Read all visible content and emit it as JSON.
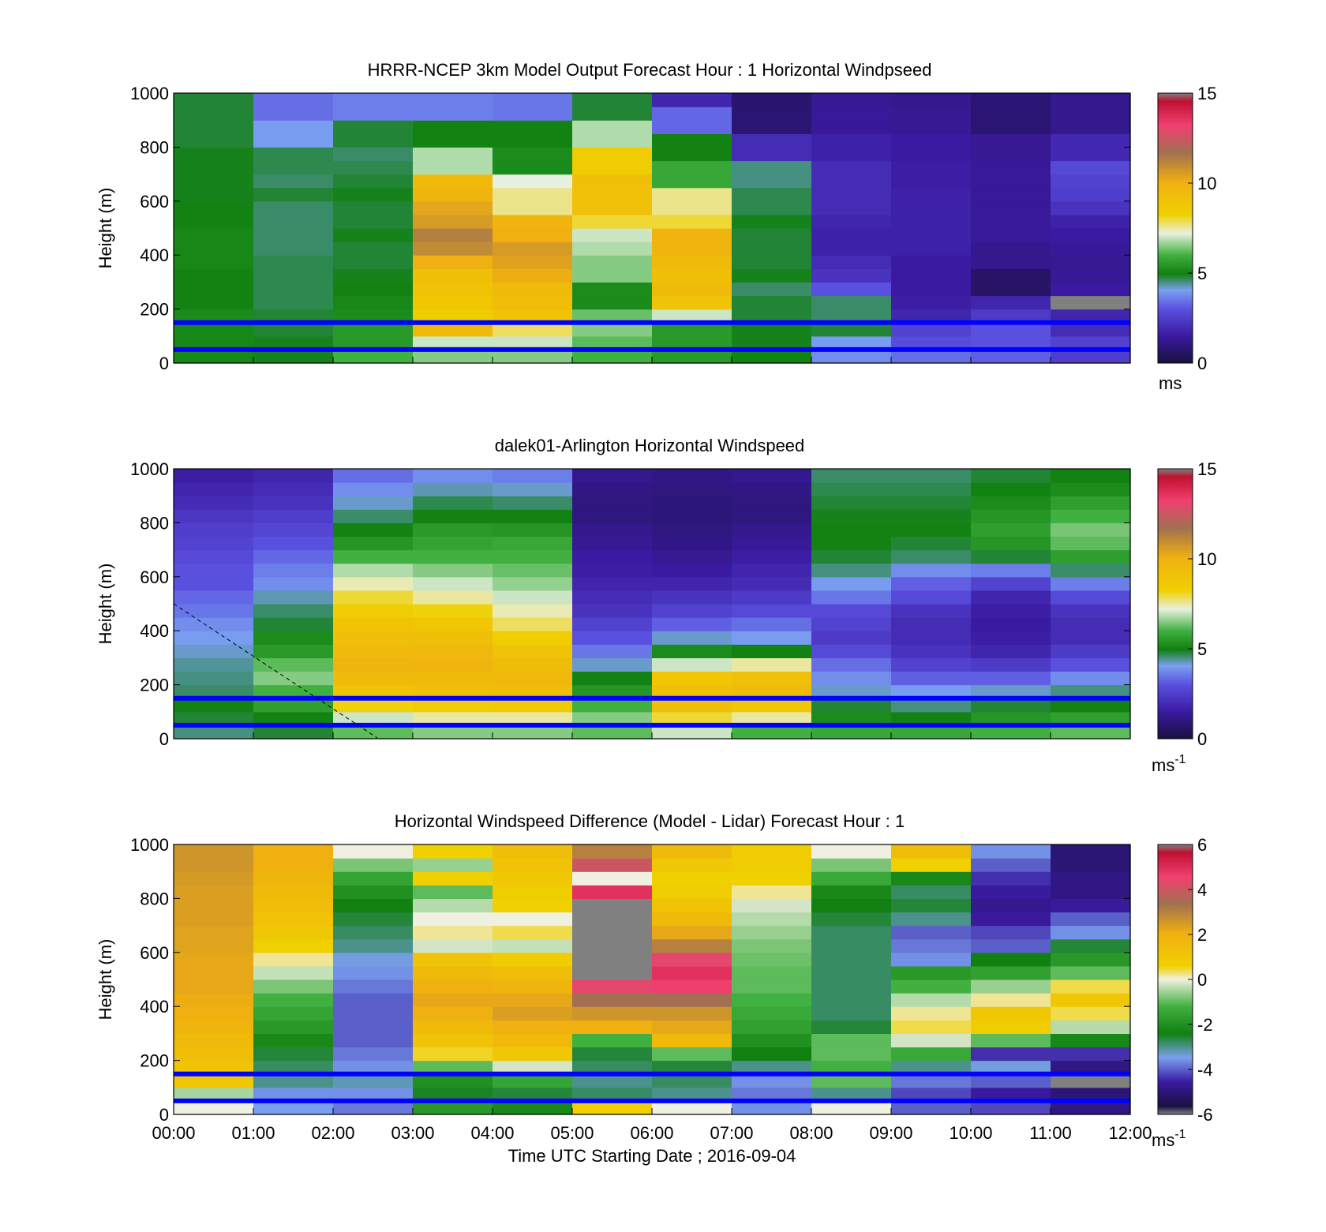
{
  "figure": {
    "xlabel": "Time UTC  Starting Date ; 2016-09-04"
  },
  "chart_data": [
    {
      "type": "heatmap",
      "title": "HRRR-NCEP 3km Model Output   Forecast Hour : 1 Horizontal Windpseed",
      "ylabel": "Height (m)",
      "ylim": [
        0,
        1000
      ],
      "yticks": [
        "0",
        "200",
        "400",
        "600",
        "800",
        "1000"
      ],
      "x_range": [
        "00:00",
        "12:00"
      ],
      "x_tick_labels_shown": false,
      "colorbar": {
        "min": 0,
        "max": 15,
        "ticks": [
          "0",
          "5",
          "10",
          "15"
        ],
        "unit": "ms",
        "unit_sup": ""
      },
      "reference_lines_m": [
        150,
        50
      ],
      "reference_line_color": "#0000ff",
      "value_scale": [
        0,
        15
      ],
      "columns": [
        [
          5.1,
          5.1,
          5.1,
          5.2,
          5.0,
          5.0,
          5.0,
          5.1,
          5.1,
          5.1,
          5.0,
          5.0,
          4.9,
          4.9,
          4.9,
          4.9,
          4.8,
          4.8,
          4.8,
          4.8
        ],
        [
          4.9,
          4.9,
          4.8,
          4.8,
          4.7,
          4.7,
          4.7,
          4.7,
          4.6,
          4.6,
          4.6,
          4.6,
          4.8,
          4.6,
          4.7,
          4.7,
          4.0,
          4.0,
          3.4,
          3.4
        ],
        [
          6.0,
          5.5,
          5.5,
          5.2,
          5.1,
          5.0,
          4.9,
          4.8,
          4.8,
          4.9,
          4.8,
          4.8,
          4.9,
          4.8,
          4.7,
          4.6,
          4.8,
          4.8,
          3.6,
          3.6
        ],
        [
          6.5,
          7.0,
          9.5,
          8.5,
          8.8,
          9.0,
          9.2,
          10.0,
          11.0,
          11.3,
          10.6,
          10.3,
          9.8,
          9.5,
          6.8,
          6.8,
          5.0,
          5.0,
          3.6,
          3.6
        ],
        [
          6.5,
          7.0,
          7.8,
          9.0,
          9.3,
          9.5,
          10.1,
          10.4,
          10.6,
          10.0,
          9.8,
          7.6,
          7.6,
          7.2,
          5.2,
          5.2,
          5.0,
          5.0,
          3.5,
          3.5
        ],
        [
          6.0,
          6.2,
          6.5,
          6.3,
          5.2,
          5.2,
          6.5,
          6.5,
          6.8,
          7.0,
          8.0,
          9.1,
          9.1,
          9.2,
          8.5,
          8.5,
          6.8,
          6.8,
          4.8,
          4.8
        ],
        [
          5.5,
          5.5,
          5.5,
          7.0,
          9.0,
          9.5,
          9.2,
          9.5,
          9.8,
          9.8,
          8.0,
          7.6,
          7.6,
          5.8,
          5.8,
          5.0,
          5.0,
          3.3,
          3.3,
          1.8
        ],
        [
          5.0,
          4.9,
          4.9,
          4.8,
          4.8,
          4.6,
          4.9,
          4.8,
          4.8,
          4.8,
          4.9,
          4.7,
          4.7,
          4.5,
          4.5,
          2.0,
          2.0,
          0.8,
          0.8,
          0.7
        ],
        [
          3.8,
          4.0,
          4.8,
          4.6,
          4.6,
          3.0,
          2.2,
          2.0,
          1.7,
          1.7,
          1.8,
          2.0,
          2.0,
          2.0,
          2.0,
          1.7,
          1.7,
          1.4,
          1.4,
          1.3
        ],
        [
          3.4,
          2.9,
          2.6,
          1.8,
          1.6,
          1.5,
          1.5,
          1.5,
          1.7,
          1.7,
          1.7,
          1.7,
          1.7,
          1.6,
          1.6,
          1.5,
          1.5,
          1.3,
          1.3,
          1.2
        ],
        [
          3.2,
          3.0,
          3.0,
          2.4,
          1.8,
          0.6,
          0.6,
          1.2,
          1.2,
          1.4,
          1.4,
          1.4,
          1.4,
          1.4,
          1.4,
          1.3,
          1.3,
          0.8,
          0.8,
          0.8
        ],
        [
          2.5,
          2.6,
          2.0,
          1.8,
          -1,
          1.5,
          1.3,
          1.3,
          1.4,
          1.5,
          1.7,
          2.2,
          2.5,
          2.6,
          2.8,
          1.9,
          1.9,
          1.2,
          1.2,
          1.2
        ]
      ]
    },
    {
      "type": "heatmap",
      "title": "dalek01-Arlington  Horizontal Windspeed",
      "ylabel": "Height (m)",
      "ylim": [
        0,
        1000
      ],
      "yticks": [
        "0",
        "200",
        "400",
        "600",
        "800",
        "1000"
      ],
      "x_range": [
        "00:00",
        "12:00"
      ],
      "x_tick_labels_shown": false,
      "colorbar": {
        "min": 0,
        "max": 15,
        "ticks": [
          "0",
          "5",
          "10",
          "15"
        ],
        "unit": "ms",
        "unit_sup": "-1"
      },
      "reference_lines_m": [
        150,
        50
      ],
      "reference_line_color": "#0000ff",
      "value_scale": [
        0,
        15
      ],
      "columns": [
        [
          4.5,
          4.8,
          5.0,
          4.6,
          4.5,
          4.4,
          4.2,
          4.0,
          3.8,
          3.5,
          3.3,
          3.0,
          3.0,
          2.8,
          2.6,
          2.5,
          2.3,
          2.0,
          1.8,
          1.6
        ],
        [
          4.8,
          5.0,
          5.6,
          6.0,
          6.5,
          6.2,
          5.5,
          5.2,
          4.8,
          4.6,
          4.3,
          3.8,
          3.6,
          3.3,
          3.0,
          2.7,
          2.5,
          2.2,
          2.0,
          1.8
        ],
        [
          6.2,
          7.0,
          8.2,
          9.0,
          9.5,
          9.8,
          9.5,
          9.2,
          9.0,
          8.5,
          8.0,
          7.4,
          6.8,
          6.0,
          5.4,
          5.0,
          4.6,
          4.2,
          3.8,
          3.4
        ],
        [
          6.5,
          7.5,
          8.5,
          9.2,
          9.5,
          9.8,
          9.6,
          9.2,
          8.8,
          8.2,
          7.5,
          7.0,
          6.5,
          6.0,
          5.7,
          5.5,
          5.0,
          4.7,
          4.3,
          3.8
        ],
        [
          6.5,
          7.5,
          8.6,
          9.3,
          9.6,
          9.4,
          9.0,
          8.4,
          7.8,
          7.4,
          7.0,
          6.6,
          6.3,
          6.0,
          5.8,
          5.4,
          5.0,
          4.6,
          4.2,
          3.6
        ],
        [
          6.2,
          6.5,
          6.0,
          5.4,
          5.0,
          4.2,
          3.5,
          3.0,
          2.6,
          2.2,
          2.0,
          1.8,
          1.6,
          1.5,
          1.3,
          1.2,
          1.0,
          1.0,
          1.1,
          1.2
        ],
        [
          7.0,
          8.0,
          9.2,
          9.2,
          8.8,
          7.0,
          5.2,
          4.2,
          3.2,
          2.6,
          2.2,
          1.8,
          1.5,
          1.3,
          1.1,
          1.0,
          0.9,
          0.9,
          1.0,
          1.1
        ],
        [
          6.0,
          7.5,
          8.8,
          9.5,
          9.2,
          7.5,
          5.0,
          4.0,
          3.4,
          2.8,
          2.4,
          2.0,
          1.8,
          1.6,
          1.4,
          1.2,
          1.0,
          1.0,
          1.1,
          1.2
        ],
        [
          5.8,
          5.2,
          4.8,
          4.2,
          3.8,
          3.4,
          2.8,
          2.4,
          2.6,
          2.8,
          3.5,
          4.0,
          4.5,
          4.8,
          5.0,
          5.0,
          4.9,
          4.8,
          4.7,
          4.6
        ],
        [
          5.8,
          5.0,
          4.5,
          4.0,
          3.2,
          2.6,
          2.2,
          2.0,
          2.0,
          2.2,
          2.8,
          3.2,
          3.8,
          4.6,
          4.8,
          5.0,
          4.9,
          4.8,
          4.7,
          4.6
        ],
        [
          6.0,
          5.4,
          4.8,
          4.2,
          3.2,
          2.4,
          1.8,
          1.6,
          1.5,
          1.6,
          1.8,
          2.6,
          3.6,
          4.8,
          5.4,
          5.6,
          5.4,
          5.2,
          5.0,
          4.8
        ],
        [
          6.2,
          5.6,
          5.0,
          4.5,
          3.8,
          3.0,
          2.4,
          2.0,
          2.0,
          2.2,
          2.8,
          3.6,
          4.6,
          5.6,
          6.2,
          6.4,
          6.0,
          5.6,
          5.2,
          5.0
        ]
      ]
    },
    {
      "type": "heatmap",
      "title": "Horizontal Windspeed Difference (Model - Lidar) Forecast Hour : 1",
      "ylabel": "Height (m)",
      "ylim": [
        0,
        1000
      ],
      "yticks": [
        "0",
        "200",
        "400",
        "600",
        "800",
        "1000"
      ],
      "xticks": [
        "00:00",
        "01:00",
        "02:00",
        "03:00",
        "04:00",
        "05:00",
        "06:00",
        "07:00",
        "08:00",
        "09:00",
        "10:00",
        "11:00",
        "12:00"
      ],
      "colorbar": {
        "min": -6,
        "max": 6,
        "ticks": [
          "-6",
          "-4",
          "-2",
          "0",
          "2",
          "4",
          "6"
        ],
        "unit": "ms",
        "unit_sup": "-1"
      },
      "reference_lines_m": [
        150,
        50
      ],
      "reference_line_color": "#0000ff",
      "value_scale": [
        -6,
        6
      ],
      "columns": [
        [
          0.0,
          -0.5,
          1.0,
          1.2,
          1.4,
          1.6,
          1.8,
          2.0,
          2.1,
          2.2,
          2.2,
          2.2,
          2.3,
          2.3,
          2.4,
          2.4,
          2.4,
          2.5,
          2.6,
          2.6
        ],
        [
          -3.5,
          -3.6,
          -3.0,
          -2.8,
          -2.6,
          -2.2,
          -1.8,
          -1.5,
          -1.2,
          -0.8,
          -0.3,
          0.2,
          0.6,
          1.0,
          1.2,
          1.4,
          1.6,
          1.8,
          2.0,
          2.0
        ],
        [
          -3.8,
          -3.6,
          -3.2,
          -3.6,
          -3.8,
          -4.0,
          -4.0,
          -4.0,
          -4.0,
          -3.8,
          -3.6,
          -3.4,
          -3.0,
          -2.8,
          -2.6,
          -2.4,
          -2.0,
          -1.5,
          -0.8,
          0.0
        ],
        [
          -1.8,
          -2.5,
          -2.0,
          -1.0,
          0.5,
          1.2,
          1.6,
          2.0,
          2.2,
          2.0,
          1.6,
          1.2,
          -0.2,
          0.2,
          0.0,
          -0.4,
          -1.0,
          0.6,
          -0.6,
          0.6
        ],
        [
          -2.2,
          -2.6,
          -1.5,
          -0.2,
          1.0,
          1.6,
          2.0,
          2.4,
          2.2,
          1.8,
          1.4,
          0.8,
          -0.3,
          0.4,
          0.0,
          0.6,
          0.8,
          1.0,
          1.2,
          1.4
        ],
        [
          0.6,
          -2.8,
          -3.0,
          -2.8,
          -2.6,
          -1.2,
          2.0,
          2.6,
          3.4,
          4.4,
          -99,
          -99,
          -99,
          -99,
          -99,
          -99,
          5.0,
          0.0,
          4.0,
          3.0
        ],
        [
          0.0,
          -3.0,
          -2.8,
          -2.6,
          -1.0,
          1.6,
          2.2,
          2.6,
          3.4,
          4.6,
          5.0,
          4.4,
          3.0,
          2.2,
          1.6,
          1.2,
          0.8,
          0.6,
          1.0,
          1.6
        ],
        [
          -3.6,
          -3.8,
          -3.6,
          -3.0,
          -2.4,
          -2.0,
          -1.6,
          -1.4,
          -1.2,
          -1.0,
          -1.0,
          -0.9,
          -0.8,
          -0.6,
          -0.4,
          -0.2,
          0.2,
          0.6,
          0.8,
          0.8
        ],
        [
          0.0,
          -3.0,
          -1.0,
          -1.2,
          -1.0,
          -1.0,
          -2.6,
          -2.8,
          -2.8,
          -2.8,
          -2.8,
          -2.8,
          -2.8,
          -2.8,
          -2.6,
          -2.4,
          -2.2,
          -1.4,
          -0.8,
          0.0
        ],
        [
          -4.0,
          -4.2,
          -3.8,
          -3.0,
          -1.4,
          -0.2,
          0.4,
          0.2,
          -0.4,
          -1.2,
          -1.8,
          -3.6,
          -3.8,
          -4.0,
          -3.0,
          -2.6,
          -2.8,
          -2.2,
          0.6,
          1.4
        ],
        [
          -4.2,
          -4.6,
          -4.0,
          -3.4,
          -4.4,
          -1.0,
          0.8,
          1.0,
          0.2,
          -0.6,
          -1.6,
          -2.4,
          -4.0,
          -4.2,
          -4.6,
          -4.8,
          -4.6,
          -4.4,
          -4.0,
          -3.6
        ],
        [
          -5.0,
          -5.2,
          -99,
          -5.0,
          -4.4,
          -2.2,
          -0.4,
          0.4,
          1.0,
          0.4,
          -1.0,
          -1.8,
          -2.6,
          -3.6,
          -4.0,
          -4.6,
          -5.0,
          -5.0,
          -5.2,
          -5.2
        ]
      ]
    }
  ]
}
